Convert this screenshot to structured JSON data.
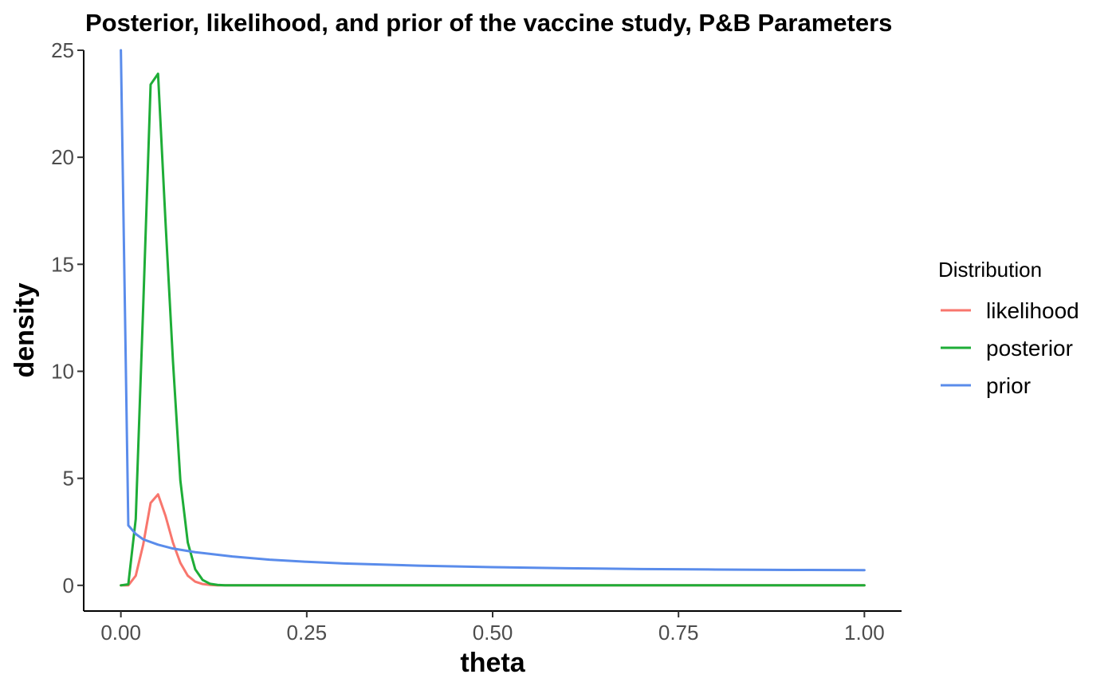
{
  "chart_data": {
    "type": "line",
    "title": "Posterior, likelihood, and prior of the vaccine study, P&B Parameters",
    "xlabel": "theta",
    "ylabel": "density",
    "xlim": [
      -0.05,
      1.05
    ],
    "ylim": [
      -1.2,
      25
    ],
    "x_ticks": [
      0,
      0.25,
      0.5,
      0.75,
      1
    ],
    "x_tick_labels": [
      "0.00",
      "0.25",
      "0.50",
      "0.75",
      "1.00"
    ],
    "y_ticks": [
      0,
      5,
      10,
      15,
      20,
      25
    ],
    "y_tick_labels": [
      "0",
      "5",
      "10",
      "15",
      "20",
      "25"
    ],
    "grid": false,
    "legend": {
      "title": "Distribution",
      "position": "right"
    },
    "series": [
      {
        "name": "likelihood",
        "color": "#F8766D",
        "x": [
          0,
          0.01,
          0.02,
          0.03,
          0.04,
          0.05,
          0.06,
          0.07,
          0.08,
          0.09,
          0.1,
          0.11,
          0.12,
          0.13,
          0.14,
          0.15,
          0.2,
          0.3,
          0.5,
          0.75,
          1.0
        ],
        "y": [
          0,
          0.0,
          0.45,
          1.9,
          3.85,
          4.25,
          3.25,
          2.0,
          1.05,
          0.45,
          0.17,
          0.06,
          0.02,
          0.0,
          0.0,
          0.0,
          0.0,
          0.0,
          0.0,
          0.0,
          0.0
        ]
      },
      {
        "name": "posterior",
        "color": "#1EAD37",
        "x": [
          0,
          0.01,
          0.02,
          0.03,
          0.04,
          0.05,
          0.06,
          0.07,
          0.08,
          0.09,
          0.1,
          0.11,
          0.12,
          0.13,
          0.14,
          0.15,
          0.2,
          0.3,
          0.5,
          0.75,
          1.0
        ],
        "y": [
          0,
          0.05,
          3.1,
          13.0,
          23.4,
          23.9,
          17.0,
          10.5,
          4.9,
          2.0,
          0.75,
          0.25,
          0.07,
          0.02,
          0.0,
          0.0,
          0.0,
          0.0,
          0.0,
          0.0,
          0.0
        ]
      },
      {
        "name": "prior",
        "color": "#5A8CEB",
        "x": [
          0.0,
          0.01,
          0.02,
          0.03,
          0.05,
          0.07,
          0.1,
          0.15,
          0.2,
          0.25,
          0.3,
          0.4,
          0.5,
          0.6,
          0.7,
          0.75,
          0.8,
          0.9,
          1.0
        ],
        "y": [
          25.0,
          2.8,
          2.4,
          2.15,
          1.9,
          1.72,
          1.55,
          1.35,
          1.2,
          1.1,
          1.02,
          0.92,
          0.85,
          0.8,
          0.76,
          0.75,
          0.74,
          0.72,
          0.71
        ]
      }
    ]
  }
}
